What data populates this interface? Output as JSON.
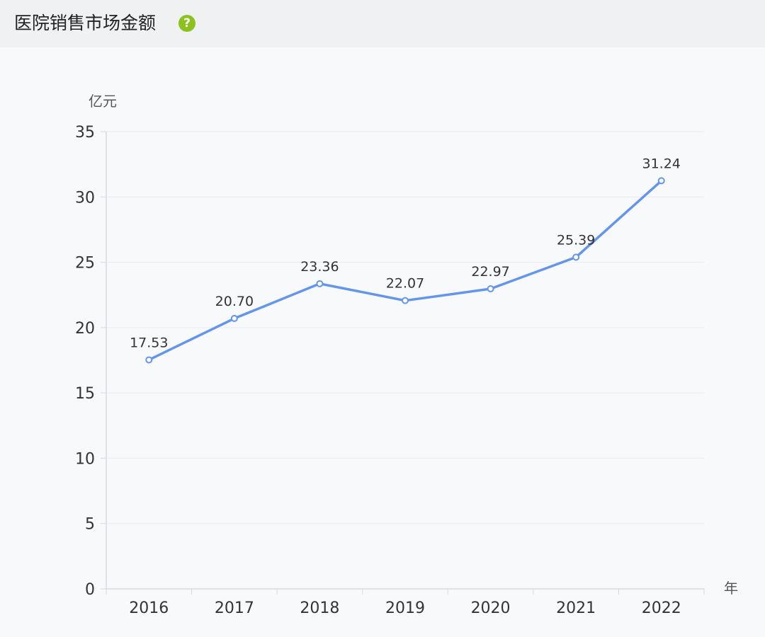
{
  "header": {
    "title": "医院销售市场金额",
    "help_icon": "question-circle-icon"
  },
  "chart_data": {
    "type": "line",
    "title": "医院销售市场金额",
    "ylabel": "亿元",
    "xlabel": "年",
    "categories": [
      "2016",
      "2017",
      "2018",
      "2019",
      "2020",
      "2021",
      "2022"
    ],
    "series": [
      {
        "values": [
          17.53,
          20.7,
          23.36,
          22.07,
          22.97,
          25.39,
          31.24
        ],
        "labels": [
          "17.53",
          "20.70",
          "23.36",
          "22.07",
          "22.97",
          "25.39",
          "31.24"
        ]
      }
    ],
    "ylim": [
      0,
      35
    ],
    "yticks": [
      "0",
      "5",
      "10",
      "15",
      "20",
      "25",
      "30",
      "35"
    ],
    "grid": true,
    "colors": {
      "line": "#6495ed",
      "grid": "#ebedf2",
      "axis": "#d6d9e0"
    }
  }
}
